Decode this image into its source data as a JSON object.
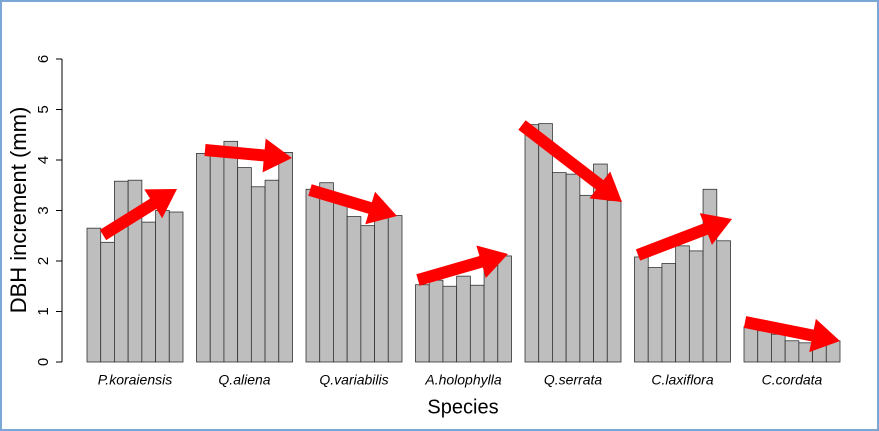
{
  "chart_data": {
    "type": "grouped-bar",
    "y_label": "DBH increment (mm)",
    "x_label": "Species",
    "categories": [
      "P.koraiensis",
      "Q.aliena",
      "Q.variabilis",
      "A.holophylla",
      "Q.serrata",
      "C.laxiflora",
      "C.cordata"
    ],
    "series": [
      {
        "color": "#bebebe",
        "values": [
          2.65,
          4.13,
          3.42,
          1.53,
          4.7,
          2.08,
          0.7
        ]
      },
      {
        "color": "#bebebe",
        "values": [
          2.37,
          4.1,
          3.55,
          1.62,
          4.72,
          1.87,
          0.62
        ]
      },
      {
        "color": "#bebebe",
        "values": [
          3.58,
          4.37,
          3.2,
          1.5,
          3.75,
          1.95,
          0.55
        ]
      },
      {
        "color": "#bebebe",
        "values": [
          3.6,
          3.85,
          2.88,
          1.7,
          3.72,
          2.3,
          0.42
        ]
      },
      {
        "color": "#bebebe",
        "values": [
          2.77,
          3.47,
          2.7,
          1.52,
          3.3,
          2.2,
          0.38
        ]
      },
      {
        "color": "#bebebe",
        "values": [
          3.0,
          3.6,
          2.85,
          1.95,
          3.92,
          3.42,
          0.4
        ]
      },
      {
        "color": "#bebebe",
        "values": [
          2.97,
          4.15,
          2.9,
          2.1,
          3.2,
          2.4,
          0.42
        ]
      }
    ],
    "ylim": [
      0,
      6
    ],
    "yticks": [
      0,
      1,
      2,
      3,
      4,
      5,
      6
    ]
  }
}
